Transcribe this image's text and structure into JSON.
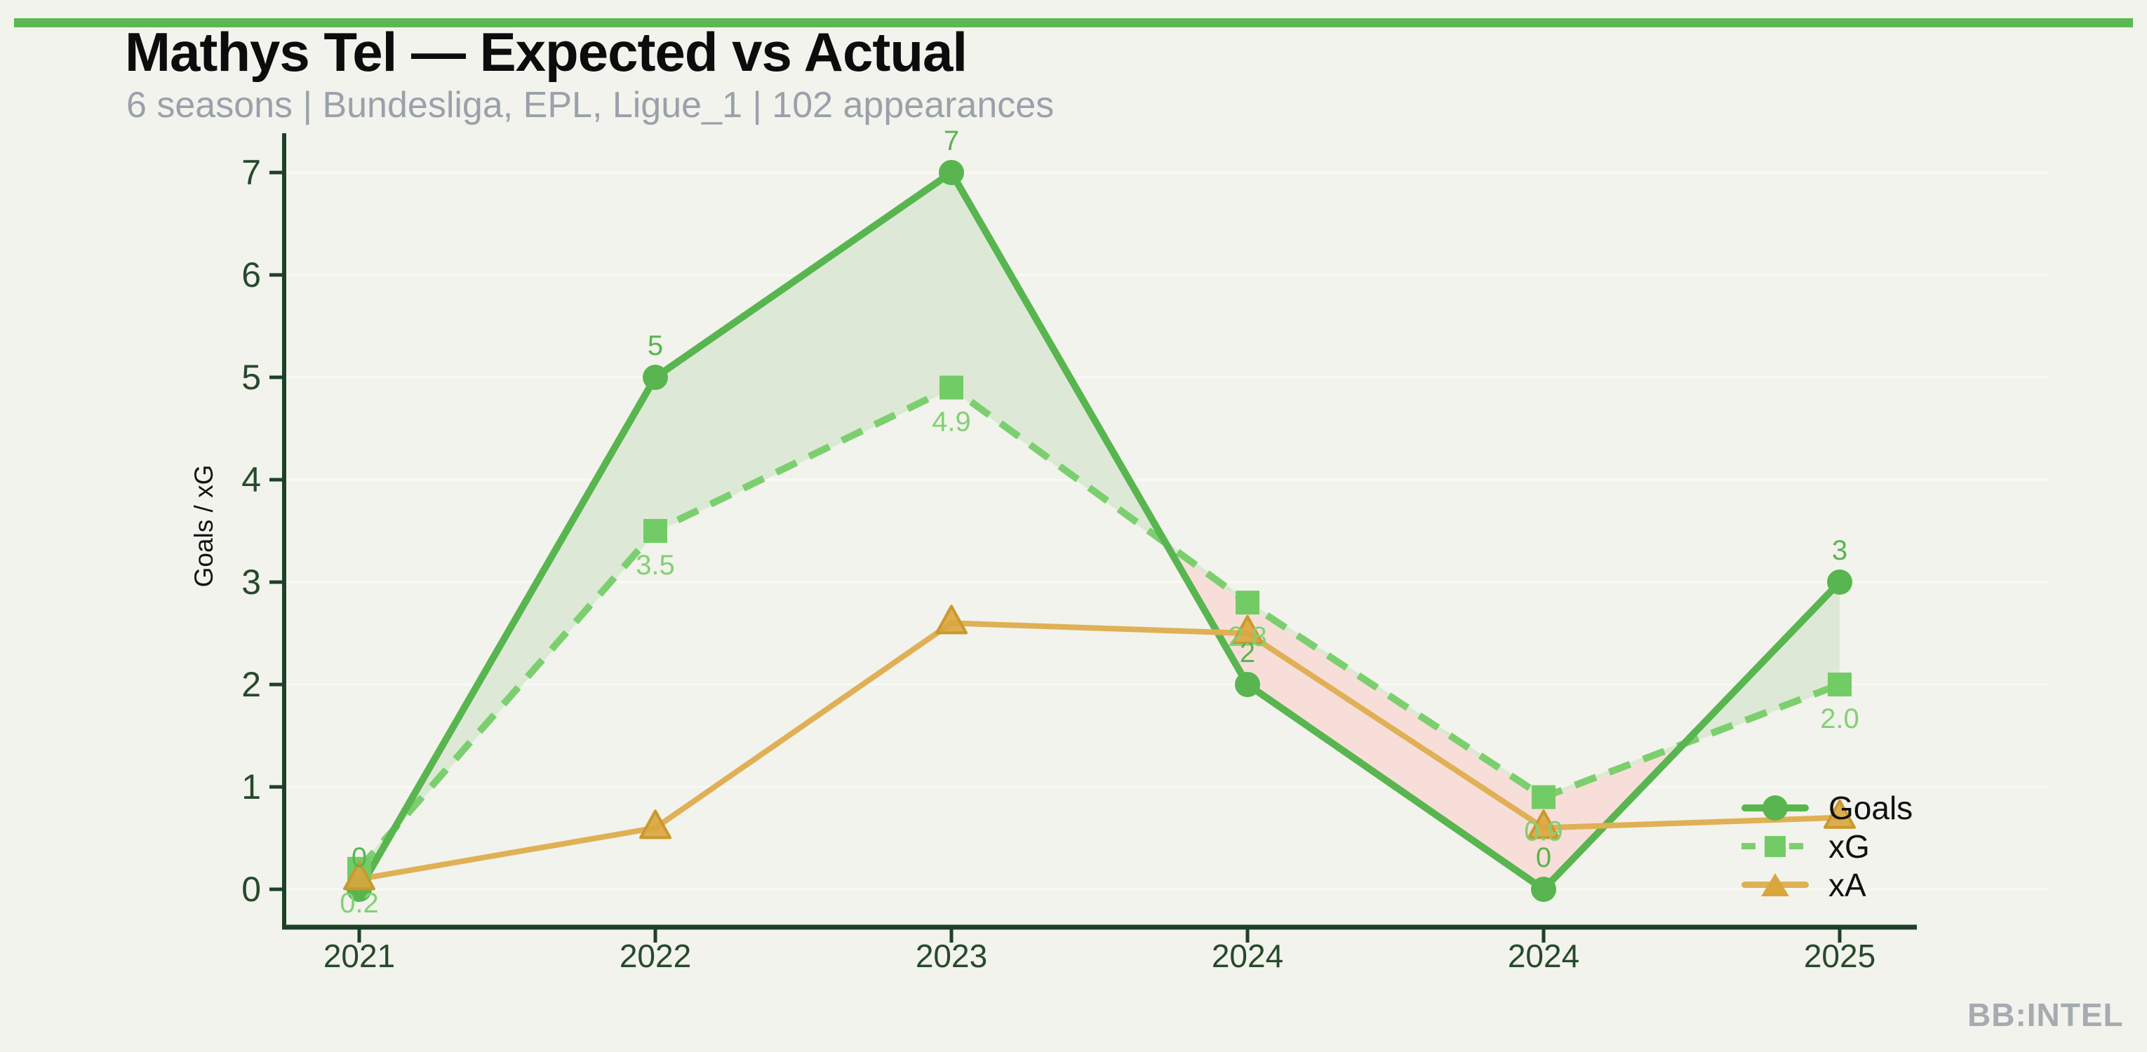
{
  "header": {
    "title": "Mathys Tel — Expected vs Actual",
    "subtitle": "6 seasons | Bundesliga, EPL, Ligue_1 | 102 appearances"
  },
  "footer": {
    "brand": "BB:INTEL"
  },
  "style": {
    "background": "#f2f3ec",
    "accent_bar_color": "#5cb852",
    "axis_color": "#1d4127",
    "tick_label_color": "#27492c",
    "grid_color": "#f9faf4",
    "title_color": "#0c0c0c",
    "subtitle_color": "#9aa1ab",
    "fill_positive": "#dde9d6",
    "fill_negative": "#f8ded9"
  },
  "chart_data": {
    "type": "line",
    "title": "Mathys Tel — Expected vs Actual",
    "categories": [
      "2021",
      "2022",
      "2023",
      "2024",
      "2024",
      "2025"
    ],
    "series": [
      {
        "name": "Goals",
        "values": [
          0,
          5,
          7,
          2,
          0,
          3
        ],
        "labels": [
          "0",
          "5",
          "7",
          "2",
          "0",
          "3"
        ],
        "color": "#58b54f",
        "label_color": "#58b54f",
        "marker": "circle",
        "line_style": "solid"
      },
      {
        "name": "xG",
        "values": [
          0.2,
          3.5,
          4.9,
          2.8,
          0.9,
          2.0
        ],
        "labels": [
          "0.2",
          "3.5",
          "4.9",
          "2.8",
          "0.9",
          "2.0"
        ],
        "color": "#7ccf6f",
        "label_color": "#82d174",
        "marker": "square",
        "marker_color": "#72cc66",
        "line_style": "dashed"
      },
      {
        "name": "xA",
        "values": [
          0.1,
          0.6,
          2.6,
          2.5,
          0.6,
          0.7
        ],
        "labels": [],
        "color": "#dfb055",
        "label_color": "#dfb055",
        "marker": "triangle",
        "marker_color": "#d9a63e",
        "line_style": "solid"
      }
    ],
    "xlabel": "",
    "ylabel": "Goals / xG",
    "yticks": [
      0,
      1,
      2,
      3,
      4,
      5,
      6,
      7
    ],
    "ylim": [
      -0.37,
      7.38
    ],
    "grid": true,
    "legend_position": "lower right",
    "fill_between": {
      "upper": "Goals",
      "lower": "xG",
      "positive_color": "#dde9d6",
      "negative_color": "#f8ded9"
    }
  }
}
